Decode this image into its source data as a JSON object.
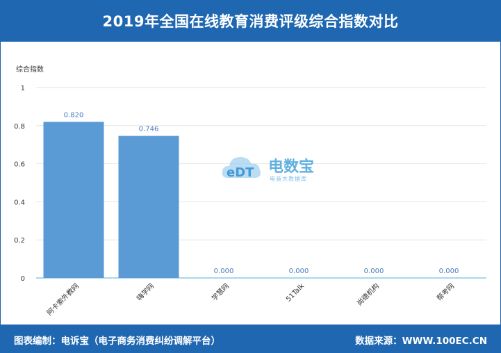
{
  "title": "2019年全国在线教育消费评级综合指数对比",
  "footer": {
    "left": "图表编制：电诉宝（电子商务消费纠纷调解平台）",
    "right": "数据来源：WWW.100EC.CN"
  },
  "watermark": {
    "brand": "电数宝",
    "sub": "电商大数据库",
    "logo": "eDT"
  },
  "colors": {
    "header": "#1f67b1",
    "bar": "#5b9bd5",
    "label": "#4a7fbf"
  },
  "chart_data": {
    "type": "bar",
    "ylabel": "综合指数",
    "ylim": [
      0,
      1
    ],
    "yticks": [
      "0",
      "0.2",
      "0.4",
      "0.6",
      "0.8",
      "1"
    ],
    "ytick_values": [
      0,
      0.2,
      0.4,
      0.6,
      0.8,
      1
    ],
    "categories": [
      "阿卡索外教网",
      "嗨学网",
      "学慧网",
      "51Talk",
      "尚德机构",
      "帮考网"
    ],
    "values": [
      0.82,
      0.746,
      0.0,
      0.0,
      0.0,
      0.0
    ],
    "value_labels": [
      "0.820",
      "0.746",
      "0.000",
      "0.000",
      "0.000",
      "0.000"
    ],
    "grid": true
  }
}
